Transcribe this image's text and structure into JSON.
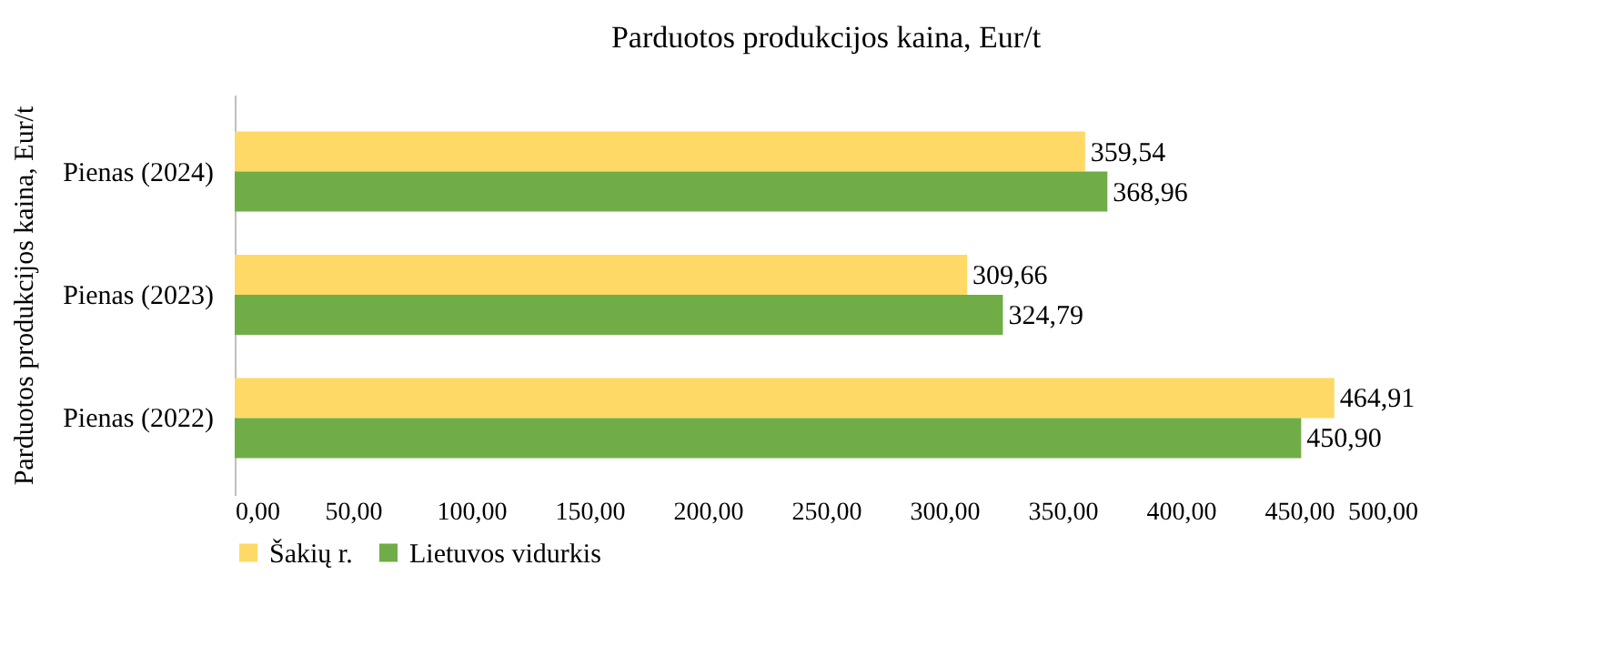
{
  "chart_data": {
    "type": "bar",
    "orientation": "horizontal",
    "title": "Parduotos produkcijos  kaina,  Eur/t",
    "ylabel": "Parduotos produkcijos kaina, Eur/t",
    "categories": [
      "Pienas  (2024)",
      "Pienas  (2023)",
      "Pienas  (2022)"
    ],
    "series": [
      {
        "name": "Šakių r.",
        "color": "#ffd966",
        "values": [
          359.54,
          309.66,
          464.91
        ],
        "value_labels": [
          "359,54",
          "309,66",
          "464,91"
        ]
      },
      {
        "name": "Lietuvos vidurkis",
        "color": "#70ad47",
        "values": [
          368.96,
          324.79,
          450.9
        ],
        "value_labels": [
          "368,96",
          "324,79",
          "450,90"
        ]
      }
    ],
    "xlim": [
      0,
      500
    ],
    "xticks": [
      {
        "value": 0,
        "label": "0,00"
      },
      {
        "value": 50,
        "label": "50,00"
      },
      {
        "value": 100,
        "label": "100,00"
      },
      {
        "value": 150,
        "label": "150,00"
      },
      {
        "value": 200,
        "label": "200,00"
      },
      {
        "value": 250,
        "label": "250,00"
      },
      {
        "value": 300,
        "label": "300,00"
      },
      {
        "value": 350,
        "label": "350,00"
      },
      {
        "value": 400,
        "label": "400,00"
      },
      {
        "value": 450,
        "label": "450,00"
      },
      {
        "value": 500,
        "label": "500,00"
      }
    ],
    "grid": false,
    "legend": "bottom"
  }
}
